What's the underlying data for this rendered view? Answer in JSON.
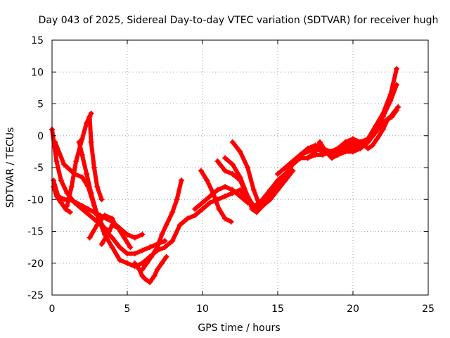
{
  "chart_data": {
    "type": "line",
    "title": "Day 043 of 2025, Sidereal Day-to-day VTEC variation (SDTVAR) for receiver hugh",
    "xlabel": "GPS time / hours",
    "ylabel": "SDTVAR / TECUs",
    "xlim": [
      0,
      25
    ],
    "ylim": [
      -25,
      15
    ],
    "xticks": [
      "0",
      "5",
      "10",
      "15",
      "20",
      "25"
    ],
    "yticks": [
      "15",
      "10",
      "5",
      "0",
      "-5",
      "-10",
      "-15",
      "-20",
      "-25"
    ],
    "grid": true,
    "line_color": "#ff0000",
    "marker": "plus",
    "series": [
      {
        "x": [
          0.0,
          0.3,
          0.6,
          1.0,
          1.5,
          2.0,
          2.5,
          3.0,
          3.5,
          3.8
        ],
        "y": [
          1.0,
          -4.0,
          -7.0,
          -9.0,
          -10.5,
          -11.5,
          -12.5,
          -13.5,
          -14.5,
          -15.0
        ]
      },
      {
        "x": [
          0.1,
          0.4,
          0.8,
          1.2,
          1.6,
          2.0,
          2.4,
          2.8,
          3.2,
          3.6,
          4.0,
          4.5,
          5.0,
          5.5,
          6.0
        ],
        "y": [
          -7.0,
          -9.5,
          -10.0,
          -10.0,
          -10.5,
          -11.0,
          -11.5,
          -12.0,
          -12.5,
          -13.0,
          -13.5,
          -14.5,
          -15.5,
          -16.0,
          -15.5
        ]
      },
      {
        "x": [
          0.1,
          0.3,
          0.6,
          0.9,
          1.2
        ],
        "y": [
          -8.0,
          -9.5,
          -10.5,
          -11.5,
          -12.0
        ]
      },
      {
        "x": [
          0.2,
          0.8,
          1.5,
          2.0,
          2.4,
          2.8,
          3.2,
          3.6,
          4.0,
          4.5,
          5.0,
          5.5,
          6.0,
          6.5,
          7.0,
          7.5
        ],
        "y": [
          -1.0,
          -4.5,
          -6.0,
          -6.5,
          -8.0,
          -11.0,
          -13.5,
          -15.0,
          -16.0,
          -17.5,
          -18.5,
          -18.5,
          -18.0,
          -17.5,
          -17.0,
          -16.5
        ]
      },
      {
        "x": [
          1.0,
          1.3,
          1.6,
          2.0,
          2.3,
          2.6
        ],
        "y": [
          -11.0,
          -8.0,
          -4.0,
          -0.5,
          2.0,
          3.5
        ]
      },
      {
        "x": [
          1.8,
          2.0,
          2.3,
          2.6,
          3.0,
          3.5,
          4.0,
          4.5,
          5.0,
          5.5,
          6.0,
          6.5
        ],
        "y": [
          -1.0,
          -3.0,
          -6.0,
          -9.0,
          -12.5,
          -15.5,
          -17.5,
          -19.5,
          -20.0,
          -20.5,
          -20.0,
          -19.0
        ]
      },
      {
        "x": [
          2.5,
          2.6,
          2.8,
          3.0,
          3.3
        ],
        "y": [
          3.0,
          -1.0,
          -5.0,
          -8.0,
          -10.0
        ]
      },
      {
        "x": [
          2.5,
          3.0,
          3.5,
          4.0,
          4.2
        ],
        "y": [
          -16.0,
          -14.0,
          -12.5,
          -13.0,
          -14.0
        ]
      },
      {
        "x": [
          3.3,
          3.7,
          4.0,
          4.4,
          4.8,
          5.2
        ],
        "y": [
          -17.0,
          -15.5,
          -14.0,
          -14.5,
          -16.0,
          -17.5
        ]
      },
      {
        "x": [
          5.5,
          5.8,
          6.0,
          6.2,
          6.5,
          6.8,
          7.0,
          7.3,
          7.6
        ],
        "y": [
          -20.0,
          -21.0,
          -22.0,
          -22.5,
          -23.0,
          -22.0,
          -21.0,
          -20.0,
          -19.0
        ]
      },
      {
        "x": [
          6.0,
          6.3,
          6.6,
          7.0,
          7.3,
          7.6,
          8.0,
          8.3,
          8.6
        ],
        "y": [
          -21.0,
          -20.0,
          -19.0,
          -17.5,
          -15.5,
          -14.0,
          -12.0,
          -10.0,
          -7.0
        ]
      },
      {
        "x": [
          6.5,
          7.0,
          7.5,
          8.0,
          8.5,
          9.0,
          9.5,
          10.0,
          10.5,
          11.0,
          11.5,
          12.0,
          12.5,
          13.0,
          13.5,
          14.0,
          14.5,
          15.0,
          15.5
        ],
        "y": [
          -19.0,
          -18.0,
          -17.5,
          -16.5,
          -14.0,
          -13.0,
          -12.5,
          -11.5,
          -10.5,
          -10.0,
          -9.5,
          -9.0,
          -8.5,
          -10.0,
          -11.5,
          -10.0,
          -8.5,
          -7.0,
          -6.0
        ]
      },
      {
        "x": [
          9.5,
          10.0,
          10.5,
          11.0,
          11.5,
          12.0,
          12.5,
          13.0,
          13.5,
          14.0,
          14.5,
          15.0
        ],
        "y": [
          -11.5,
          -10.5,
          -9.5,
          -8.5,
          -8.0,
          -8.5,
          -9.5,
          -10.5,
          -11.0,
          -10.0,
          -8.5,
          -7.5
        ]
      },
      {
        "x": [
          9.9,
          10.3,
          10.7,
          11.1,
          11.5,
          11.9
        ],
        "y": [
          -5.5,
          -7.0,
          -9.0,
          -11.5,
          -13.0,
          -13.5
        ]
      },
      {
        "x": [
          11.0,
          11.5,
          12.0,
          12.5,
          13.0,
          13.5,
          14.0,
          14.5,
          15.0,
          15.5,
          16.0,
          16.5,
          17.0,
          17.5,
          18.0,
          18.5,
          19.0,
          19.5,
          20.0,
          20.5,
          21.0
        ],
        "y": [
          -4.0,
          -5.5,
          -6.0,
          -7.0,
          -9.5,
          -11.5,
          -10.5,
          -9.5,
          -8.0,
          -6.0,
          -4.5,
          -3.5,
          -3.5,
          -3.0,
          -3.0,
          -2.5,
          -2.5,
          -2.0,
          -2.0,
          -1.5,
          -1.0
        ]
      },
      {
        "x": [
          11.5,
          12.0,
          12.5,
          13.0,
          13.3,
          13.6,
          14.0,
          14.5,
          15.0,
          15.5,
          16.0
        ],
        "y": [
          -3.5,
          -4.5,
          -6.5,
          -9.5,
          -11.5,
          -12.0,
          -11.0,
          -10.0,
          -8.5,
          -7.0,
          -5.5
        ]
      },
      {
        "x": [
          12.0,
          12.5,
          13.0,
          13.4,
          13.8
        ],
        "y": [
          -1.0,
          -2.5,
          -5.0,
          -8.5,
          -11.0
        ]
      },
      {
        "x": [
          15.0,
          15.5,
          16.0,
          16.5,
          17.0,
          17.5,
          18.0,
          18.5,
          19.0,
          19.5,
          20.0,
          20.5,
          21.0,
          21.5,
          22.0,
          22.5,
          22.9
        ],
        "y": [
          -6.0,
          -5.0,
          -4.0,
          -3.0,
          -2.0,
          -1.5,
          -2.0,
          -2.5,
          -2.0,
          -1.5,
          -1.0,
          -1.5,
          -0.5,
          1.5,
          3.5,
          6.5,
          10.5
        ]
      },
      {
        "x": [
          16.0,
          16.5,
          17.0,
          17.5,
          18.0,
          18.5,
          19.0,
          19.5,
          20.0,
          20.5,
          21.0,
          21.5,
          22.0,
          22.5,
          22.9
        ],
        "y": [
          -4.0,
          -3.0,
          -2.5,
          -2.0,
          -2.5,
          -3.0,
          -2.5,
          -2.0,
          -1.5,
          -1.0,
          -0.5,
          1.0,
          3.0,
          5.5,
          8.0
        ]
      },
      {
        "x": [
          16.5,
          17.0,
          17.5,
          17.8,
          18.2,
          18.6,
          19.0,
          19.5,
          20.0,
          20.5,
          21.0,
          21.5,
          22.0,
          22.5,
          23.0
        ],
        "y": [
          -3.5,
          -3.5,
          -2.5,
          -1.0,
          -2.5,
          -3.5,
          -3.0,
          -2.5,
          -2.5,
          -2.0,
          -1.0,
          0.5,
          2.0,
          3.0,
          4.5
        ]
      },
      {
        "x": [
          18.0,
          18.5,
          19.0,
          19.5,
          20.0,
          20.5,
          21.0,
          21.3,
          21.6,
          22.0,
          22.3,
          22.6,
          22.9
        ],
        "y": [
          -2.5,
          -3.0,
          -2.0,
          -1.0,
          -0.5,
          -1.0,
          -2.0,
          -1.5,
          -0.5,
          1.0,
          2.5,
          3.0,
          4.0
        ]
      }
    ]
  }
}
